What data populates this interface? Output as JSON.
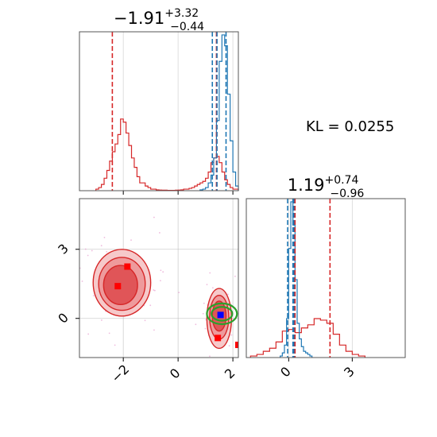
{
  "colors": {
    "red": "#d62728",
    "blue": "#1f77b4",
    "green": "#2ca02c",
    "marker_red": "#ff0000",
    "marker_blue": "#0000ff",
    "grid": "#b0b0b0",
    "frame": "#555555"
  },
  "kl_text": "KL = 0.0255",
  "chart_data": [
    {
      "type": "histogram",
      "panel": "marginal-x",
      "title": {
        "median": "−1.91",
        "plus": "+3.32",
        "minus": "−0.44"
      },
      "xlim": [
        -3.6,
        2.2
      ],
      "grid": true,
      "x_ticks": [
        -2,
        0,
        2
      ],
      "series": [
        {
          "name": "",
          "color": "#d62728",
          "bins_x": [
            -2.95,
            -2.85,
            -2.75,
            -2.65,
            -2.55,
            -2.45,
            -2.35,
            -2.25,
            -2.15,
            -2.05,
            -1.95,
            -1.85,
            -1.75,
            -1.65,
            -1.55,
            -1.45,
            -1.35,
            -1.25,
            -1.15,
            -1.05,
            -0.95,
            -0.85,
            -0.75,
            -0.65,
            -0.55,
            -0.45,
            -0.35,
            -0.25,
            -0.15,
            -0.05,
            0.05,
            0.15,
            0.25,
            0.35,
            0.45,
            0.55,
            0.65,
            0.75,
            0.85,
            0.95,
            1.05,
            1.15,
            1.25,
            1.35,
            1.45,
            1.55,
            1.65,
            1.75,
            1.85,
            1.95,
            2.05,
            2.15
          ],
          "density": [
            0.01,
            0.02,
            0.04,
            0.08,
            0.13,
            0.19,
            0.25,
            0.3,
            0.36,
            0.46,
            0.44,
            0.37,
            0.29,
            0.21,
            0.15,
            0.09,
            0.05,
            0.05,
            0.03,
            0.02,
            0.01,
            0.01,
            0.005,
            0.004,
            0.003,
            0.003,
            0.002,
            0.002,
            0.002,
            0.003,
            0.004,
            0.005,
            0.01,
            0.01,
            0.015,
            0.02,
            0.03,
            0.04,
            0.05,
            0.06,
            0.08,
            0.12,
            0.18,
            0.21,
            0.22,
            0.18,
            0.12,
            0.07,
            0.04,
            0.02,
            0.01,
            0.01
          ]
        },
        {
          "name": "",
          "color": "#1f77b4",
          "bins_x": [
            0.85,
            0.95,
            1.05,
            1.15,
            1.25,
            1.35,
            1.45,
            1.55,
            1.65,
            1.75,
            1.85,
            1.95,
            2.05,
            2.15
          ],
          "density": [
            0.005,
            0.01,
            0.02,
            0.05,
            0.1,
            0.21,
            0.45,
            0.83,
            1.0,
            0.93,
            0.62,
            0.32,
            0.12,
            0.03
          ]
        }
      ],
      "vlines": [
        {
          "x": -2.4,
          "color": "#d62728"
        },
        {
          "x": 1.4,
          "color": "#d62728"
        },
        {
          "x": 1.25,
          "color": "#1f77b4"
        },
        {
          "x": 1.42,
          "color": "#1f77b4"
        },
        {
          "x": 1.75,
          "color": "#1f77b4"
        }
      ]
    },
    {
      "type": "contour",
      "panel": "joint",
      "xlim": [
        -3.6,
        2.2
      ],
      "ylim": [
        -1.7,
        5.2
      ],
      "x_ticks": [
        -2,
        0,
        2
      ],
      "y_ticks": [
        0,
        3
      ],
      "tick_labels_x": [
        "−2",
        "0",
        "2"
      ],
      "tick_labels_y": [
        "0",
        "3"
      ],
      "grid": true,
      "red_levels": [
        {
          "cx": -2.05,
          "cy": 1.55,
          "rx": 1.05,
          "ry": 1.45
        },
        {
          "cx": -2.05,
          "cy": 1.5,
          "rx": 0.85,
          "ry": 1.15
        },
        {
          "cx": -2.1,
          "cy": 1.45,
          "rx": 0.62,
          "ry": 0.85
        },
        {
          "cx": 1.5,
          "cy": 0.0,
          "rx": 0.45,
          "ry": 1.3
        },
        {
          "cx": 1.5,
          "cy": 0.05,
          "rx": 0.35,
          "ry": 0.95
        },
        {
          "cx": 1.5,
          "cy": 0.1,
          "rx": 0.25,
          "ry": 0.65
        }
      ],
      "green_levels": [
        {
          "cx": 1.6,
          "cy": 0.2,
          "rx": 0.55,
          "ry": 0.45
        },
        {
          "cx": 1.6,
          "cy": 0.2,
          "rx": 0.38,
          "ry": 0.3
        }
      ],
      "red_markers": [
        [
          -2.2,
          1.4
        ],
        [
          -1.85,
          2.25
        ],
        [
          1.45,
          -0.85
        ],
        [
          2.2,
          -1.15
        ]
      ],
      "blue_markers": [
        [
          1.55,
          0.15
        ]
      ]
    },
    {
      "type": "histogram",
      "panel": "marginal-y",
      "title": {
        "median": "1.19",
        "plus": "+0.74",
        "minus": "−0.96"
      },
      "xlim": [
        -2.0,
        5.5
      ],
      "x_ticks": [
        0,
        3
      ],
      "tick_labels_x": [
        "0",
        "3"
      ],
      "grid": true,
      "series": [
        {
          "name": "",
          "color": "#d62728",
          "bins_x": [
            -1.65,
            -1.35,
            -1.05,
            -0.75,
            -0.45,
            -0.15,
            0.15,
            0.45,
            0.75,
            1.05,
            1.35,
            1.65,
            1.95,
            2.25,
            2.55,
            2.85,
            3.15,
            3.45
          ],
          "density": [
            0.01,
            0.02,
            0.04,
            0.06,
            0.1,
            0.17,
            0.18,
            0.16,
            0.19,
            0.21,
            0.25,
            0.24,
            0.22,
            0.15,
            0.08,
            0.04,
            0.02,
            0.01
          ]
        },
        {
          "name": "",
          "color": "#1f77b4",
          "bins_x": [
            -0.35,
            -0.25,
            -0.15,
            -0.05,
            0.05,
            0.15,
            0.25,
            0.35,
            0.45,
            0.55,
            0.65,
            0.75,
            0.85,
            0.95,
            1.05
          ],
          "density": [
            0.01,
            0.03,
            0.08,
            0.25,
            0.7,
            1.0,
            0.85,
            0.5,
            0.22,
            0.12,
            0.07,
            0.04,
            0.03,
            0.02,
            0.01
          ]
        }
      ],
      "vlines": [
        {
          "x": -0.05,
          "color": "#1f77b4"
        },
        {
          "x": 0.2,
          "color": "#1f77b4"
        },
        {
          "x": 0.25,
          "color": "#1f77b4"
        },
        {
          "x": 0.3,
          "color": "#d62728"
        },
        {
          "x": 1.95,
          "color": "#d62728"
        }
      ]
    }
  ]
}
